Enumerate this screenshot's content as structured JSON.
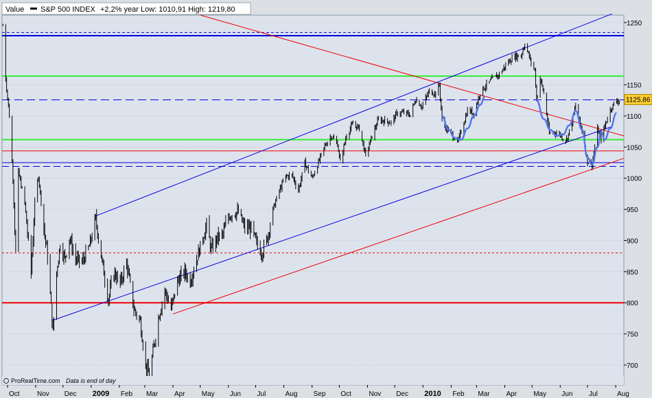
{
  "header": {
    "value_label": "Value",
    "series_name": "S&P 500 INDEX",
    "stats": "+2,2%  year Low: 1010,91  High: 1219,80"
  },
  "footer": {
    "brand": "ProRealTime.com",
    "note": "Data is end of day"
  },
  "last_price": {
    "text": "1125,86",
    "value": 1125.86
  },
  "colors": {
    "background": "#dde3ed",
    "frame": "#dcdfe4",
    "candles": "#000000",
    "blue": "#0000dd",
    "red": "#ee0000",
    "green": "#33ee33",
    "purple": "#660066",
    "price_tag": "#ffcc33"
  },
  "chart_data": {
    "type": "line",
    "title": "",
    "xlabel": "",
    "ylabel": "",
    "ylim": [
      668,
      1262
    ],
    "xlim": [
      "2008-09-25",
      "2010-08-10"
    ],
    "y_axis_position": "right",
    "y_ticks": [
      700,
      750,
      800,
      850,
      900,
      950,
      1000,
      1050,
      1100,
      1150,
      1250
    ],
    "x_ticks": [
      {
        "date": "2008-10-01",
        "label": "Oct",
        "bold": false
      },
      {
        "date": "2008-11-01",
        "label": "Nov",
        "bold": false
      },
      {
        "date": "2008-12-01",
        "label": "Dec",
        "bold": false
      },
      {
        "date": "2009-01-01",
        "label": "2009",
        "bold": true
      },
      {
        "date": "2009-02-01",
        "label": "Feb",
        "bold": false
      },
      {
        "date": "2009-03-01",
        "label": "Mar",
        "bold": false
      },
      {
        "date": "2009-04-01",
        "label": "Apr",
        "bold": false
      },
      {
        "date": "2009-05-01",
        "label": "May",
        "bold": false
      },
      {
        "date": "2009-06-01",
        "label": "Jun",
        "bold": false
      },
      {
        "date": "2009-07-01",
        "label": "Jul",
        "bold": false
      },
      {
        "date": "2009-08-01",
        "label": "Aug",
        "bold": false
      },
      {
        "date": "2009-09-01",
        "label": "Sep",
        "bold": false
      },
      {
        "date": "2009-10-01",
        "label": "Oct",
        "bold": false
      },
      {
        "date": "2009-11-01",
        "label": "Nov",
        "bold": false
      },
      {
        "date": "2009-12-01",
        "label": "Dec",
        "bold": false
      },
      {
        "date": "2010-01-01",
        "label": "2010",
        "bold": true
      },
      {
        "date": "2010-02-01",
        "label": "Feb",
        "bold": false
      },
      {
        "date": "2010-03-01",
        "label": "Mar",
        "bold": false
      },
      {
        "date": "2010-04-01",
        "label": "Apr",
        "bold": false
      },
      {
        "date": "2010-05-01",
        "label": "May",
        "bold": false
      },
      {
        "date": "2010-06-01",
        "label": "Jun",
        "bold": false
      },
      {
        "date": "2010-07-01",
        "label": "Jul",
        "bold": false
      },
      {
        "date": "2010-08-01",
        "label": "Aug",
        "bold": false
      }
    ],
    "series": [
      {
        "name": "S&P 500 INDEX",
        "style": "bars",
        "points": [
          [
            "2008-09-26",
            1245
          ],
          [
            "2008-09-29",
            1160
          ],
          [
            "2008-10-03",
            1100
          ],
          [
            "2008-10-07",
            1000
          ],
          [
            "2008-10-10",
            880
          ],
          [
            "2008-10-13",
            1010
          ],
          [
            "2008-10-20",
            960
          ],
          [
            "2008-10-27",
            848
          ],
          [
            "2008-10-31",
            960
          ],
          [
            "2008-11-04",
            1005
          ],
          [
            "2008-11-10",
            920
          ],
          [
            "2008-11-14",
            875
          ],
          [
            "2008-11-20",
            752
          ],
          [
            "2008-11-24",
            850
          ],
          [
            "2008-11-28",
            895
          ],
          [
            "2008-12-03",
            870
          ],
          [
            "2008-12-08",
            905
          ],
          [
            "2008-12-15",
            870
          ],
          [
            "2008-12-22",
            865
          ],
          [
            "2008-12-30",
            890
          ],
          [
            "2009-01-06",
            935
          ],
          [
            "2009-01-12",
            875
          ],
          [
            "2009-01-20",
            805
          ],
          [
            "2009-01-26",
            850
          ],
          [
            "2009-02-02",
            830
          ],
          [
            "2009-02-09",
            865
          ],
          [
            "2009-02-17",
            790
          ],
          [
            "2009-02-24",
            770
          ],
          [
            "2009-03-02",
            700
          ],
          [
            "2009-03-06",
            683
          ],
          [
            "2009-03-10",
            720
          ],
          [
            "2009-03-16",
            775
          ],
          [
            "2009-03-23",
            820
          ],
          [
            "2009-03-30",
            790
          ],
          [
            "2009-04-06",
            835
          ],
          [
            "2009-04-14",
            850
          ],
          [
            "2009-04-20",
            835
          ],
          [
            "2009-04-27",
            870
          ],
          [
            "2009-05-04",
            905
          ],
          [
            "2009-05-08",
            925
          ],
          [
            "2009-05-13",
            885
          ],
          [
            "2009-05-20",
            905
          ],
          [
            "2009-05-26",
            910
          ],
          [
            "2009-06-01",
            940
          ],
          [
            "2009-06-08",
            945
          ],
          [
            "2009-06-12",
            945
          ],
          [
            "2009-06-19",
            920
          ],
          [
            "2009-06-26",
            920
          ],
          [
            "2009-07-02",
            895
          ],
          [
            "2009-07-08",
            880
          ],
          [
            "2009-07-14",
            905
          ],
          [
            "2009-07-20",
            950
          ],
          [
            "2009-07-27",
            980
          ],
          [
            "2009-08-03",
            1003
          ],
          [
            "2009-08-10",
            1005
          ],
          [
            "2009-08-17",
            980
          ],
          [
            "2009-08-24",
            1025
          ],
          [
            "2009-09-01",
            1000
          ],
          [
            "2009-09-08",
            1025
          ],
          [
            "2009-09-15",
            1052
          ],
          [
            "2009-09-22",
            1068
          ],
          [
            "2009-09-29",
            1055
          ],
          [
            "2009-10-02",
            1025
          ],
          [
            "2009-10-09",
            1070
          ],
          [
            "2009-10-16",
            1087
          ],
          [
            "2009-10-23",
            1080
          ],
          [
            "2009-10-30",
            1036
          ],
          [
            "2009-11-06",
            1068
          ],
          [
            "2009-11-13",
            1094
          ],
          [
            "2009-11-20",
            1092
          ],
          [
            "2009-11-27",
            1090
          ],
          [
            "2009-12-04",
            1105
          ],
          [
            "2009-12-11",
            1105
          ],
          [
            "2009-12-18",
            1102
          ],
          [
            "2009-12-24",
            1127
          ],
          [
            "2009-12-31",
            1115
          ],
          [
            "2010-01-08",
            1140
          ],
          [
            "2010-01-15",
            1136
          ],
          [
            "2010-01-19",
            1150
          ],
          [
            "2010-01-22",
            1092
          ],
          [
            "2010-01-29",
            1075
          ],
          [
            "2010-02-05",
            1065
          ],
          [
            "2010-02-08",
            1056
          ],
          [
            "2010-02-12",
            1075
          ],
          [
            "2010-02-19",
            1109
          ],
          [
            "2010-02-26",
            1105
          ],
          [
            "2010-03-05",
            1138
          ],
          [
            "2010-03-12",
            1150
          ],
          [
            "2010-03-19",
            1160
          ],
          [
            "2010-03-26",
            1167
          ],
          [
            "2010-04-05",
            1187
          ],
          [
            "2010-04-12",
            1196
          ],
          [
            "2010-04-19",
            1197
          ],
          [
            "2010-04-23",
            1217
          ],
          [
            "2010-04-30",
            1186
          ],
          [
            "2010-05-04",
            1173
          ],
          [
            "2010-05-06",
            1128
          ],
          [
            "2010-05-10",
            1160
          ],
          [
            "2010-05-14",
            1136
          ],
          [
            "2010-05-20",
            1071
          ],
          [
            "2010-05-25",
            1074
          ],
          [
            "2010-06-01",
            1070
          ],
          [
            "2010-06-04",
            1064
          ],
          [
            "2010-06-08",
            1062
          ],
          [
            "2010-06-14",
            1090
          ],
          [
            "2010-06-18",
            1117
          ],
          [
            "2010-06-25",
            1076
          ],
          [
            "2010-07-01",
            1027
          ],
          [
            "2010-07-06",
            1022
          ],
          [
            "2010-07-12",
            1078
          ],
          [
            "2010-07-16",
            1064
          ],
          [
            "2010-07-22",
            1093
          ],
          [
            "2010-07-27",
            1113
          ],
          [
            "2010-08-02",
            1125
          ],
          [
            "2010-08-06",
            1125
          ]
        ]
      },
      {
        "name": "",
        "style": "smooth",
        "color": "blue",
        "points": [
          [
            "2010-01-22",
            1100
          ],
          [
            "2010-01-29",
            1078
          ],
          [
            "2010-02-05",
            1065
          ],
          [
            "2010-02-12",
            1062
          ],
          [
            "2010-02-19",
            1080
          ],
          [
            "2010-02-26",
            1100
          ],
          [
            "2010-03-05",
            1118
          ],
          [
            "2010-03-10",
            1130
          ]
        ]
      },
      {
        "name": "",
        "style": "smooth",
        "color": "blue",
        "points": [
          [
            "2010-05-06",
            1125
          ],
          [
            "2010-05-14",
            1095
          ],
          [
            "2010-05-21",
            1078
          ],
          [
            "2010-05-28",
            1068
          ],
          [
            "2010-06-04",
            1070
          ],
          [
            "2010-06-11",
            1085
          ],
          [
            "2010-06-18",
            1108
          ],
          [
            "2010-06-25",
            1078
          ],
          [
            "2010-07-01",
            1033
          ],
          [
            "2010-07-06",
            1022
          ],
          [
            "2010-07-12",
            1050
          ],
          [
            "2010-07-16",
            1075
          ],
          [
            "2010-07-20",
            1062
          ],
          [
            "2010-07-26",
            1080
          ],
          [
            "2010-08-02",
            1105
          ]
        ]
      }
    ],
    "hlines": [
      {
        "y": 1229,
        "color": "blue",
        "width": 2,
        "dash": ""
      },
      {
        "y": 1234,
        "color": "blue",
        "width": 1,
        "dash": "4,3"
      },
      {
        "y": 1164,
        "color": "green",
        "width": 2,
        "dash": ""
      },
      {
        "y": 1125.86,
        "color": "blue",
        "width": 1,
        "dash": "12,6"
      },
      {
        "y": 1062,
        "color": "green",
        "width": 2,
        "dash": ""
      },
      {
        "y": 1044,
        "color": "red",
        "width": 1,
        "dash": ""
      },
      {
        "y": 1025,
        "color": "blue",
        "width": 1,
        "dash": ""
      },
      {
        "y": 1019,
        "color": "blue",
        "width": 1,
        "dash": "10,5"
      },
      {
        "y": 880,
        "color": "red",
        "width": 1,
        "dash": "3,3"
      },
      {
        "y": 800,
        "color": "red",
        "width": 2,
        "dash": ""
      },
      {
        "y": 672,
        "color": "purple",
        "width": 2,
        "dash": ""
      }
    ],
    "trendlines": [
      {
        "x1": "2008-11-20",
        "y1": 772,
        "x2": "2010-07-28",
        "y2": 1083,
        "color": "blue"
      },
      {
        "x1": "2009-01-07",
        "y1": 940,
        "x2": "2010-07-28",
        "y2": 1264,
        "color": "blue"
      },
      {
        "x1": "2009-04-01",
        "y1": 782,
        "x2": "2010-08-10",
        "y2": 1032,
        "color": "red"
      },
      {
        "x1": "2009-05-01",
        "y1": 1262,
        "x2": "2010-08-10",
        "y2": 1068,
        "color": "red"
      }
    ],
    "grid": true,
    "legend": "top-left"
  }
}
